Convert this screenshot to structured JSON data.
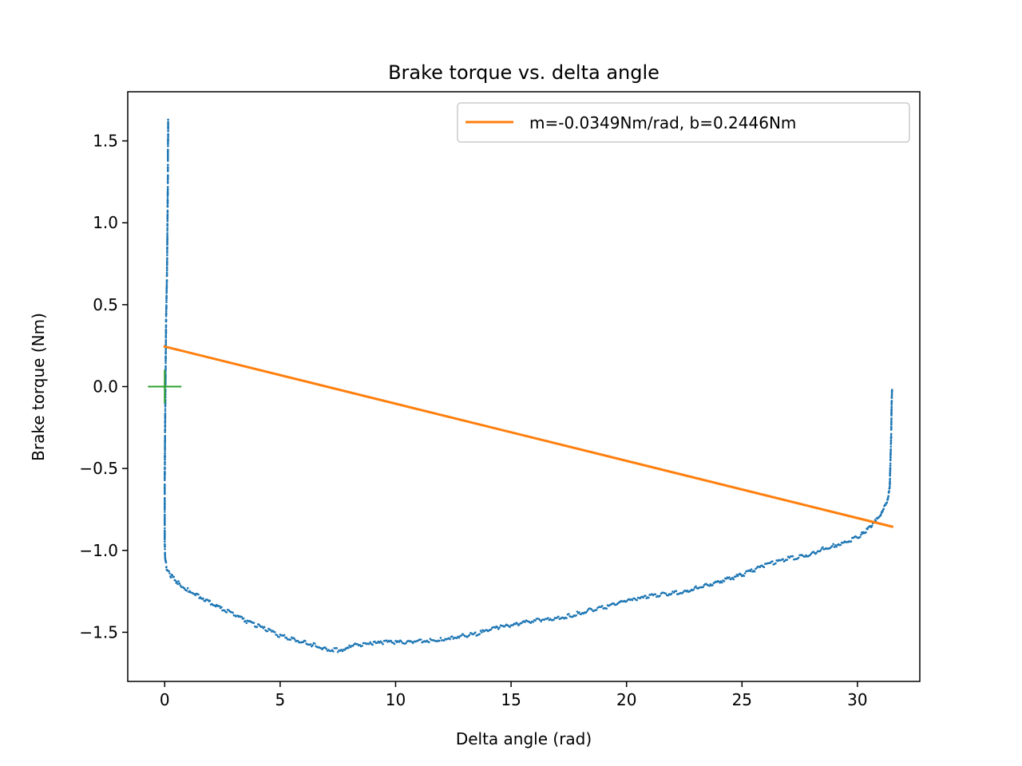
{
  "chart_data": {
    "type": "scatter",
    "title": "Brake torque vs. delta angle",
    "xlabel": "Delta angle (rad)",
    "ylabel": "Brake torque (Nm)",
    "xlim": [
      -1.6,
      32.7
    ],
    "ylim": [
      -1.8,
      1.8
    ],
    "x_ticks": [
      0,
      5,
      10,
      15,
      20,
      25,
      30
    ],
    "x_tick_labels": [
      "0",
      "5",
      "10",
      "15",
      "20",
      "25",
      "30"
    ],
    "y_ticks": [
      -1.5,
      -1.0,
      -0.5,
      0.0,
      0.5,
      1.0,
      1.5
    ],
    "y_tick_labels": [
      "−1.5",
      "−1.0",
      "−0.5",
      "0.0",
      "0.5",
      "1.0",
      "1.5"
    ],
    "grid": false,
    "legend_position": "top-right",
    "series": [
      {
        "kind": "scatter",
        "color": "#1f77b4",
        "x": [
          0.15,
          0.15,
          0.14,
          0.14,
          0.13,
          0.12,
          0.11,
          0.1,
          0.08,
          0.06,
          0.05,
          0.04,
          0.03,
          0.02,
          0.01,
          0.0,
          0.0,
          0.0,
          0.02,
          0.1,
          0.3,
          0.6,
          1.0,
          1.5,
          2.0,
          2.5,
          3.0,
          3.5,
          4.0,
          4.5,
          5.0,
          5.5,
          6.0,
          6.5,
          7.0,
          7.5,
          7.8,
          8.0,
          8.5,
          9.0,
          9.5,
          10.0,
          10.5,
          11.0,
          11.5,
          12.0,
          12.5,
          13.0,
          13.5,
          14.0,
          14.5,
          15.0,
          15.5,
          16.0,
          16.5,
          17.0,
          17.5,
          18.0,
          18.5,
          19.0,
          19.5,
          20.0,
          20.5,
          21.0,
          21.5,
          22.0,
          22.5,
          23.0,
          23.5,
          24.0,
          24.5,
          25.0,
          25.5,
          26.0,
          26.5,
          27.0,
          27.5,
          28.0,
          28.5,
          29.0,
          29.5,
          30.0,
          30.3,
          30.6,
          30.8,
          31.0,
          31.1,
          31.2,
          31.3,
          31.35,
          31.4,
          31.42,
          31.44,
          31.46,
          31.47,
          31.48,
          31.49,
          31.5
        ],
        "y": [
          1.63,
          1.55,
          1.45,
          1.3,
          1.15,
          1.0,
          0.85,
          0.7,
          0.55,
          0.4,
          0.25,
          0.1,
          -0.05,
          -0.2,
          -0.4,
          -0.6,
          -0.8,
          -0.95,
          -1.05,
          -1.12,
          -1.16,
          -1.2,
          -1.24,
          -1.28,
          -1.32,
          -1.36,
          -1.39,
          -1.43,
          -1.46,
          -1.49,
          -1.52,
          -1.54,
          -1.56,
          -1.58,
          -1.6,
          -1.61,
          -1.6,
          -1.58,
          -1.58,
          -1.57,
          -1.56,
          -1.56,
          -1.56,
          -1.55,
          -1.55,
          -1.54,
          -1.53,
          -1.52,
          -1.51,
          -1.49,
          -1.47,
          -1.46,
          -1.44,
          -1.43,
          -1.42,
          -1.41,
          -1.4,
          -1.38,
          -1.36,
          -1.35,
          -1.33,
          -1.31,
          -1.3,
          -1.28,
          -1.27,
          -1.26,
          -1.25,
          -1.23,
          -1.21,
          -1.19,
          -1.17,
          -1.15,
          -1.12,
          -1.09,
          -1.07,
          -1.05,
          -1.04,
          -1.02,
          -0.99,
          -0.97,
          -0.95,
          -0.92,
          -0.89,
          -0.85,
          -0.82,
          -0.79,
          -0.76,
          -0.73,
          -0.7,
          -0.65,
          -0.6,
          -0.5,
          -0.4,
          -0.3,
          -0.2,
          -0.12,
          -0.06,
          -0.02
        ]
      },
      {
        "kind": "line",
        "name": "m=-0.0349Nm/rad, b=0.2446Nm",
        "color": "#ff7f0e",
        "x": [
          0.0,
          31.5
        ],
        "y": [
          0.2446,
          -0.855
        ]
      },
      {
        "kind": "marker",
        "color": "#2ca02c",
        "x": [
          0.0
        ],
        "y": [
          0.0
        ]
      }
    ]
  }
}
